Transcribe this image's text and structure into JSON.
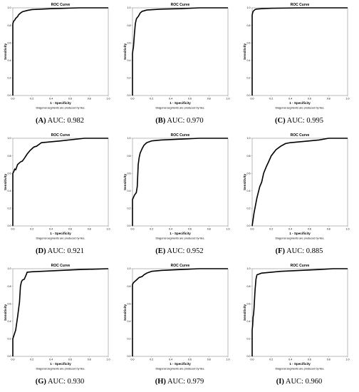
{
  "shared": {
    "xlabel": "1 - Specificity",
    "ylabel": "Sensitivity",
    "footnote": "Diagonal segments are produced by ties.",
    "ticks": [
      "0.0",
      "0.2",
      "0.4",
      "0.6",
      "0.8",
      "1.0"
    ]
  },
  "chart_data": [
    {
      "type": "line",
      "panel_letter": "(A)",
      "caption": "AUC: 0.982",
      "title": "ROC Curve",
      "xlabel": "1 - Specificity",
      "ylabel": "Sensitivity",
      "xlim": [
        0,
        1
      ],
      "ylim": [
        0,
        1
      ],
      "grid": false,
      "auc": 0.982,
      "series": [
        {
          "x": [
            0,
            0,
            0.01,
            0.02,
            0.03,
            0.05,
            0.06,
            0.08,
            0.1,
            0.15,
            0.2,
            0.3,
            0.4,
            0.5,
            0.6,
            0.7,
            1.0
          ],
          "y": [
            0,
            0.82,
            0.85,
            0.86,
            0.88,
            0.9,
            0.92,
            0.94,
            0.955,
            0.97,
            0.98,
            0.985,
            0.99,
            0.993,
            0.997,
            1.0,
            1.0
          ]
        }
      ]
    },
    {
      "type": "line",
      "panel_letter": "(B)",
      "caption": "AUC: 0.970",
      "title": "ROC Curve",
      "xlabel": "1 - Specificity",
      "ylabel": "Sensitivity",
      "xlim": [
        0,
        1
      ],
      "ylim": [
        0,
        1
      ],
      "grid": false,
      "auc": 0.97,
      "series": [
        {
          "x": [
            0,
            0,
            0.005,
            0.01,
            0.02,
            0.03,
            0.04,
            0.05,
            0.06,
            0.07,
            0.08,
            0.1,
            0.15,
            0.3,
            0.5,
            0.6,
            0.7,
            1.0
          ],
          "y": [
            0,
            0.48,
            0.52,
            0.55,
            0.7,
            0.82,
            0.87,
            0.89,
            0.9,
            0.92,
            0.94,
            0.96,
            0.975,
            0.985,
            0.99,
            0.995,
            1.0,
            1.0
          ]
        }
      ]
    },
    {
      "type": "line",
      "panel_letter": "(C)",
      "caption": "AUC: 0.995",
      "title": "ROC Curve",
      "xlabel": "1 - Specificity",
      "ylabel": "Sensitivity",
      "xlim": [
        0,
        1
      ],
      "ylim": [
        0,
        1
      ],
      "grid": false,
      "auc": 0.995,
      "series": [
        {
          "x": [
            0,
            0,
            0.005,
            0.01,
            0.02,
            0.03,
            0.04,
            0.1,
            0.2,
            0.5,
            1.0
          ],
          "y": [
            0,
            0.92,
            0.94,
            0.96,
            0.97,
            0.98,
            0.985,
            0.99,
            0.995,
            1.0,
            1.0
          ]
        }
      ]
    },
    {
      "type": "line",
      "panel_letter": "(D)",
      "caption": "AUC: 0.921",
      "title": "ROC Curve",
      "xlabel": "1 - Specificity",
      "ylabel": "Sensitivity",
      "xlim": [
        0,
        1
      ],
      "ylim": [
        0,
        1
      ],
      "grid": false,
      "auc": 0.921,
      "series": [
        {
          "x": [
            0,
            0,
            0.01,
            0.02,
            0.03,
            0.05,
            0.07,
            0.08,
            0.1,
            0.12,
            0.15,
            0.18,
            0.2,
            0.22,
            0.25,
            0.3,
            0.5,
            0.75,
            1.0
          ],
          "y": [
            0,
            0.6,
            0.62,
            0.65,
            0.64,
            0.7,
            0.72,
            0.73,
            0.74,
            0.77,
            0.82,
            0.86,
            0.88,
            0.9,
            0.91,
            0.95,
            0.97,
            1.0,
            1.0
          ]
        }
      ]
    },
    {
      "type": "line",
      "panel_letter": "(E)",
      "caption": "AUC: 0.952",
      "title": "ROC Curve",
      "xlabel": "1 - Specificity",
      "ylabel": "Sensitivity",
      "xlim": [
        0,
        1
      ],
      "ylim": [
        0,
        1
      ],
      "grid": false,
      "auc": 0.952,
      "series": [
        {
          "x": [
            0,
            0,
            0.02,
            0.04,
            0.05,
            0.06,
            0.07,
            0.08,
            0.1,
            0.12,
            0.15,
            0.2,
            0.3,
            0.5,
            0.7,
            1.0
          ],
          "y": [
            0,
            0.3,
            0.35,
            0.38,
            0.45,
            0.7,
            0.78,
            0.83,
            0.88,
            0.92,
            0.95,
            0.97,
            0.98,
            0.99,
            1.0,
            1.0
          ]
        }
      ]
    },
    {
      "type": "line",
      "panel_letter": "(F)",
      "caption": "AUC: 0.885",
      "title": "ROC Curve",
      "xlabel": "1 - Specificity",
      "ylabel": "Sensitivity",
      "xlim": [
        0,
        1
      ],
      "ylim": [
        0,
        1
      ],
      "grid": false,
      "auc": 0.885,
      "series": [
        {
          "x": [
            0,
            0.02,
            0.05,
            0.08,
            0.1,
            0.12,
            0.15,
            0.18,
            0.2,
            0.25,
            0.3,
            0.35,
            0.4,
            0.5,
            0.6,
            0.7,
            0.8,
            1.0
          ],
          "y": [
            0,
            0.15,
            0.32,
            0.45,
            0.5,
            0.6,
            0.68,
            0.75,
            0.8,
            0.87,
            0.91,
            0.94,
            0.95,
            0.96,
            0.97,
            0.98,
            1.0,
            1.0
          ]
        }
      ]
    },
    {
      "type": "line",
      "panel_letter": "(G)",
      "caption": "AUC: 0.930",
      "title": "ROC Curve",
      "xlabel": "1 - Specificity",
      "ylabel": "Sensitivity",
      "xlim": [
        0,
        1
      ],
      "ylim": [
        0,
        1
      ],
      "grid": false,
      "auc": 0.93,
      "series": [
        {
          "x": [
            0,
            0,
            0.03,
            0.05,
            0.07,
            0.08,
            0.09,
            0.1,
            0.12,
            0.14,
            0.15,
            0.2,
            0.3,
            0.5,
            0.7,
            1.0
          ],
          "y": [
            0,
            0.2,
            0.3,
            0.45,
            0.62,
            0.8,
            0.85,
            0.87,
            0.88,
            0.93,
            0.96,
            0.965,
            0.97,
            0.98,
            0.99,
            1.0
          ]
        }
      ]
    },
    {
      "type": "line",
      "panel_letter": "(H)",
      "caption": "AUC: 0.979",
      "title": "ROC Curve",
      "xlabel": "1 - Specificity",
      "ylabel": "Sensitivity",
      "xlim": [
        0,
        1
      ],
      "ylim": [
        0,
        1
      ],
      "grid": false,
      "auc": 0.979,
      "series": [
        {
          "x": [
            0,
            0,
            0.01,
            0.02,
            0.04,
            0.05,
            0.07,
            0.1,
            0.12,
            0.15,
            0.2,
            0.3,
            0.5,
            0.7,
            1.0
          ],
          "y": [
            0,
            0.82,
            0.84,
            0.85,
            0.87,
            0.88,
            0.9,
            0.91,
            0.93,
            0.95,
            0.97,
            0.98,
            0.99,
            1.0,
            1.0
          ]
        }
      ]
    },
    {
      "type": "line",
      "panel_letter": "(I)",
      "caption": "AUC: 0.960",
      "title": "ROC Curve",
      "xlabel": "1 - Specificity",
      "ylabel": "Sensitivity",
      "xlim": [
        0,
        1
      ],
      "ylim": [
        0,
        1
      ],
      "grid": false,
      "auc": 0.96,
      "series": [
        {
          "x": [
            0,
            0,
            0.005,
            0.01,
            0.015,
            0.02,
            0.03,
            0.04,
            0.05,
            0.1,
            0.2,
            0.3,
            0.5,
            0.7,
            0.85,
            1.0
          ],
          "y": [
            0,
            0.3,
            0.35,
            0.45,
            0.48,
            0.55,
            0.75,
            0.88,
            0.93,
            0.95,
            0.96,
            0.97,
            0.98,
            0.99,
            1.0,
            1.0
          ]
        }
      ]
    }
  ]
}
